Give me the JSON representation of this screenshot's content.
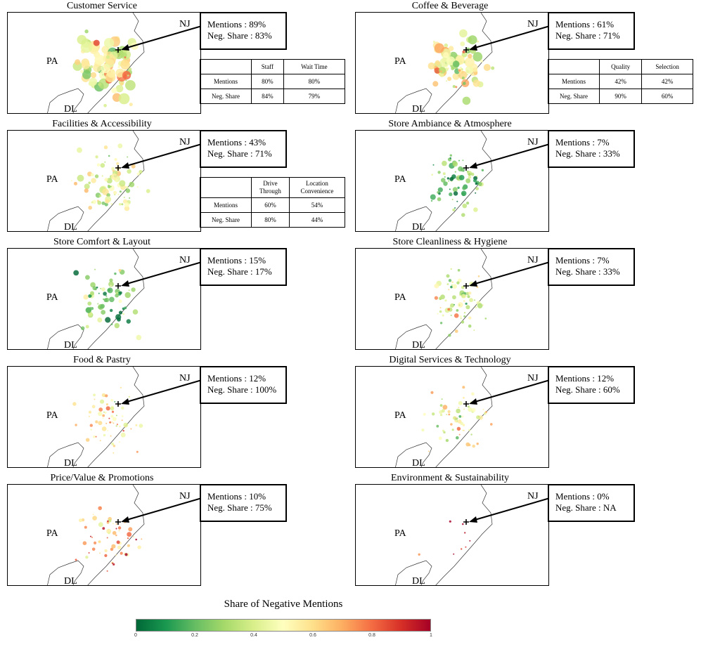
{
  "chart_data": {
    "type": "scatter",
    "description_note": "Small-multiple bubble maps by review topic; bubble color = share of negative mentions (0 to 1).",
    "region_labels": {
      "left": "PA",
      "right": "NJ",
      "bottom": "DL"
    },
    "panels": [
      {
        "title": "Customer Service",
        "mentions": "Mentions : 89%",
        "neg_share": "Neg. Share : 83%",
        "table": {
          "headers": [
            "",
            "Staff",
            "Wait Time"
          ],
          "rows": [
            [
              "Mentions",
              "80%",
              "80%"
            ],
            [
              "Neg. Share",
              "84%",
              "79%"
            ]
          ]
        },
        "density": 95,
        "size": 1.0,
        "neg_bias": 0.5
      },
      {
        "title": "Coffee & Beverage",
        "mentions": "Mentions : 61%",
        "neg_share": "Neg. Share : 71%",
        "table": {
          "headers": [
            "",
            "Quality",
            "Selection"
          ],
          "rows": [
            [
              "Mentions",
              "42%",
              "42%"
            ],
            [
              "Neg. Share",
              "90%",
              "60%"
            ]
          ]
        },
        "density": 90,
        "size": 0.85,
        "neg_bias": 0.45
      },
      {
        "title": "Facilities & Accessibility",
        "mentions": "Mentions : 43%",
        "neg_share": "Neg. Share : 71%",
        "table": {
          "headers": [
            "",
            "Drive Through",
            "Location Convenience"
          ],
          "rows": [
            [
              "Mentions",
              "60%",
              "54%"
            ],
            [
              "Neg. Share",
              "80%",
              "44%"
            ]
          ]
        },
        "density": 80,
        "size": 0.6,
        "neg_bias": 0.45
      },
      {
        "title": "Store Ambiance & Atmosphere",
        "mentions": "Mentions : 7%",
        "neg_share": "Neg. Share : 33%",
        "table": null,
        "density": 70,
        "size": 0.5,
        "neg_bias": 0.2
      },
      {
        "title": "Store Comfort & Layout",
        "mentions": "Mentions : 15%",
        "neg_share": "Neg. Share : 17%",
        "table": null,
        "density": 70,
        "size": 0.5,
        "neg_bias": 0.25
      },
      {
        "title": "Store Cleanliness & Hygiene",
        "mentions": "Mentions : 7%",
        "neg_share": "Neg. Share : 33%",
        "table": null,
        "density": 70,
        "size": 0.45,
        "neg_bias": 0.45
      },
      {
        "title": "Food & Pastry",
        "mentions": "Mentions : 12%",
        "neg_share": "Neg. Share : 100%",
        "table": null,
        "density": 65,
        "size": 0.4,
        "neg_bias": 0.55
      },
      {
        "title": "Digital Services & Technology",
        "mentions": "Mentions : 12%",
        "neg_share": "Neg. Share : 60%",
        "table": null,
        "density": 65,
        "size": 0.4,
        "neg_bias": 0.5
      },
      {
        "title": "Price/Value & Promotions",
        "mentions": "Mentions : 10%",
        "neg_share": "Neg. Share : 75%",
        "table": null,
        "density": 60,
        "size": 0.4,
        "neg_bias": 0.7
      },
      {
        "title": "Environment & Sustainability",
        "mentions": "Mentions : 0%",
        "neg_share": "Neg. Share : NA",
        "table": null,
        "density": 8,
        "size": 0.2,
        "neg_bias": 0.9
      }
    ],
    "legend": {
      "title": "Share of Negative Mentions",
      "ticks": [
        "0",
        "0.2",
        "0.4",
        "0.6",
        "0.8",
        "1"
      ],
      "range": [
        0,
        1
      ]
    }
  }
}
